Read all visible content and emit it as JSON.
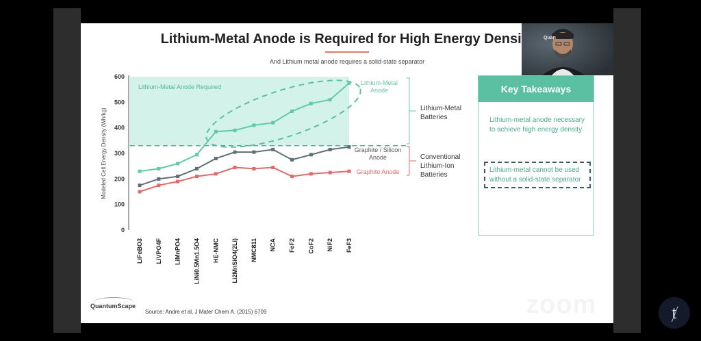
{
  "slide": {
    "title": "Lithium-Metal Anode is Required for High Energy Density",
    "subtitle": "And Lithium metal anode requires a solid-state separator",
    "source": "Source: Andre et al, J Mater Chem A. (2015) 6709",
    "logo_text": "QuantumScape"
  },
  "annotations": {
    "region_label": "Lithium-Metal Anode Required",
    "lithium_metal_anode": "Lithium-Metal Anode",
    "graphite_silicon_anode": "Graphite / Silicon Anode",
    "graphite_anode": "Graphite Anode",
    "lithium_metal_batteries": "Lithium-Metal Batteries",
    "conventional_batteries": "Conventional Lithium-Ion Batteries"
  },
  "takeaways": {
    "header": "Key Takeaways",
    "point1": "Lithium-metal anode necessary to achieve high energy density",
    "point2": "Lithium-metal cannot be used without a solid-state separator"
  },
  "webcam": {
    "overlay_text": "Quan"
  },
  "zoom_watermark": "zoom",
  "colors": {
    "lithium_metal": "#62c8a8",
    "graphite_silicon": "#5f6f72",
    "graphite": "#e06a6a",
    "region_fill": "#d3f3ea",
    "key_takeaways": "#5bbfa2",
    "dashed_box": "#3a5a66"
  },
  "chart_data": {
    "type": "line",
    "ylabel": "Modeled Cell Energy Density (Wh/kg)",
    "xlabel": "",
    "ylim": [
      0,
      600
    ],
    "yticks": [
      0,
      100,
      200,
      300,
      400,
      500,
      600
    ],
    "categories": [
      "LiFeBO3",
      "LiVPO4F",
      "LiMnPO4",
      "LiNi0.5Mn1.5O4",
      "HE-NMC",
      "Li2MnSiO4(2Li)",
      "NMC811",
      "NCA",
      "FeF2",
      "CoF2",
      "NiF2",
      "FeF3"
    ],
    "series": [
      {
        "name": "Lithium-Metal Anode",
        "color": "#62c8a8",
        "values": [
          230,
          240,
          260,
          295,
          385,
          390,
          410,
          420,
          465,
          495,
          510,
          575
        ]
      },
      {
        "name": "Graphite / Silicon Anode",
        "color": "#5f6f72",
        "values": [
          175,
          200,
          210,
          240,
          280,
          305,
          305,
          315,
          275,
          295,
          315,
          325
        ]
      },
      {
        "name": "Graphite Anode",
        "color": "#e06a6a",
        "values": [
          150,
          175,
          190,
          210,
          220,
          245,
          240,
          245,
          210,
          220,
          225,
          230
        ]
      }
    ],
    "threshold": 330,
    "region_ymin": 330,
    "grid": false,
    "legend": "none"
  }
}
